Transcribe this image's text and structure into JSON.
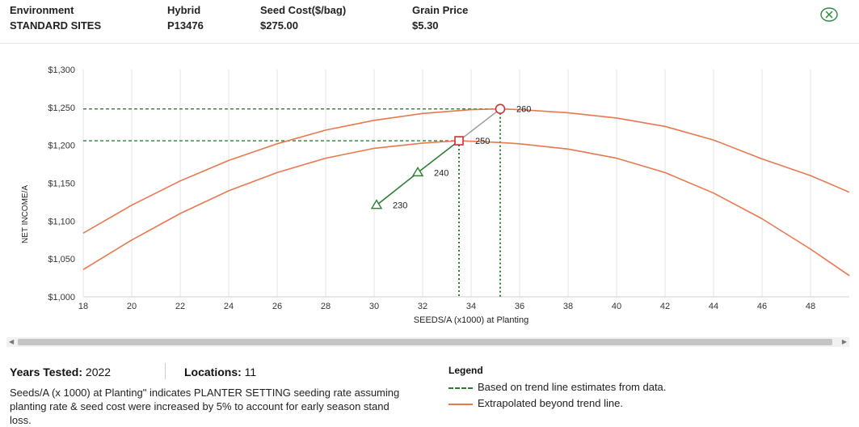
{
  "header": {
    "columns": [
      {
        "label": "Environment",
        "value": "STANDARD SITES"
      },
      {
        "label": "Hybrid",
        "value": "P13476"
      },
      {
        "label": "Seed Cost($/bag)",
        "value": "$275.00"
      },
      {
        "label": "Grain Price",
        "value": "$5.30"
      }
    ],
    "close_icon": "close-circle-icon"
  },
  "chart_data": {
    "type": "line",
    "xlabel": "SEEDS/A (x1000) at Planting",
    "ylabel": "NET INCOME/A",
    "xlim": [
      18,
      49.6
    ],
    "ylim": [
      1000,
      1300
    ],
    "x_ticks": [
      "18",
      "20",
      "22",
      "24",
      "26",
      "28",
      "30",
      "32",
      "34",
      "36",
      "38",
      "40",
      "42",
      "44",
      "46",
      "48"
    ],
    "y_ticks": [
      "$1,000",
      "$1,050",
      "$1,100",
      "$1,150",
      "$1,200",
      "$1,250",
      "$1,300"
    ],
    "grid": "vertical",
    "colors": {
      "trend": "#2e7d32",
      "extrapolated": "#e8784e",
      "guide_green": "#2e7d32",
      "connector": "#9a9a9a",
      "marker_red": "#d32f2f"
    },
    "series": [
      {
        "name": "",
        "style": "extrapolated",
        "x": [
          18,
          20,
          22,
          24,
          26,
          28,
          30,
          32,
          33.5,
          35,
          36,
          38,
          40,
          42,
          44,
          46,
          48,
          49.6
        ],
        "y": [
          1036,
          1075,
          1110,
          1140,
          1164,
          1183,
          1196,
          1203,
          1206,
          1204,
          1202,
          1195,
          1183,
          1164,
          1137,
          1103,
          1063,
          1028
        ]
      },
      {
        "name": "",
        "style": "extrapolated",
        "x": [
          18,
          20,
          22,
          24,
          26,
          28,
          30,
          32,
          34,
          35.2,
          36,
          38,
          40,
          42,
          44,
          46,
          48,
          49.6
        ],
        "y": [
          1084,
          1121,
          1153,
          1180,
          1202,
          1220,
          1233,
          1242,
          1247,
          1248,
          1247,
          1243,
          1236,
          1225,
          1207,
          1182,
          1160,
          1138
        ]
      },
      {
        "name": "",
        "style": "trend",
        "x": [
          30.1,
          31.8,
          33.5
        ],
        "y": [
          1121,
          1164,
          1206
        ]
      }
    ],
    "points": [
      {
        "label": "230",
        "x": 30.1,
        "y": 1121,
        "marker": "triangle"
      },
      {
        "label": "240",
        "x": 31.8,
        "y": 1164,
        "marker": "triangle"
      },
      {
        "label": "250",
        "x": 33.5,
        "y": 1206,
        "marker": "square"
      },
      {
        "label": "260",
        "x": 35.2,
        "y": 1248,
        "marker": "circle"
      }
    ]
  },
  "meta": {
    "years_label": "Years Tested:",
    "years_value": "2022",
    "locations_label": "Locations:",
    "locations_value": "11",
    "note": "Seeds/A (x 1000) at Planting\" indicates PLANTER SETTING seeding rate assuming planting rate & seed cost were increased by 5% to account for early season stand loss."
  },
  "legend": {
    "title": "Legend",
    "items": [
      {
        "label": "Based on trend line estimates from data.",
        "color": "#2e7d32",
        "style": "dashed"
      },
      {
        "label": "Extrapolated beyond trend line.",
        "color": "#e8784e",
        "style": "solid"
      }
    ]
  }
}
